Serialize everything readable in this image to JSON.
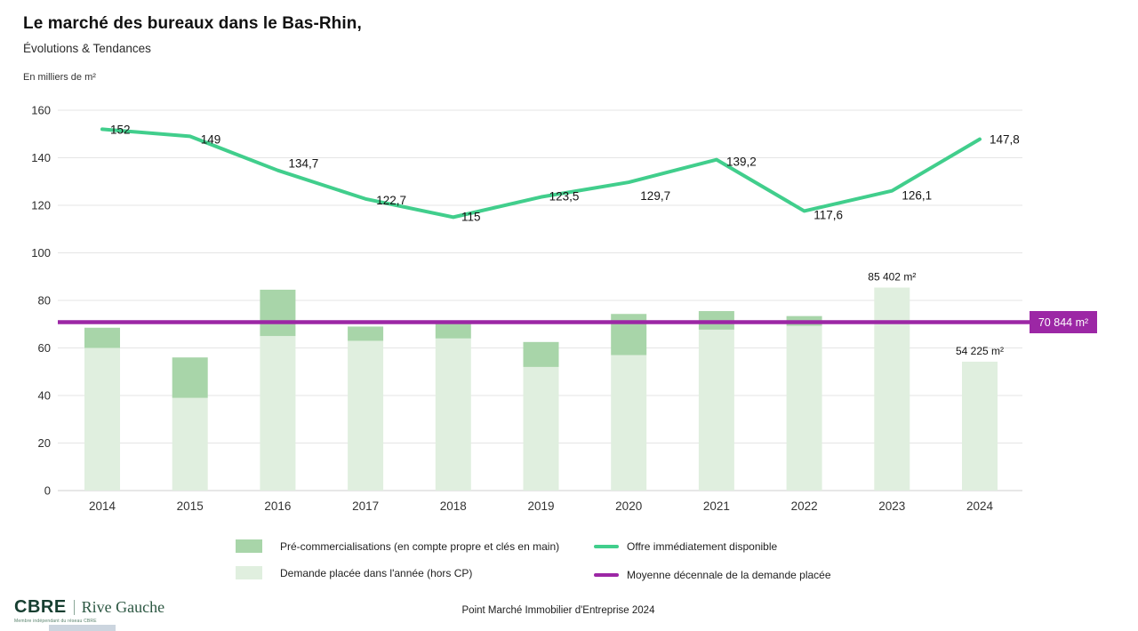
{
  "header": {
    "title": "Le marché des bureaux dans le Bas-Rhin,",
    "subtitle": "Évolutions & Tendances",
    "unit": "En milliers de m²"
  },
  "colors": {
    "bar_light": "#e0efdf",
    "bar_dark": "#a8d5a9",
    "line_green": "#41ce8c",
    "purple": "#9c27a5",
    "grid": "#e5e5e5",
    "axis": "#cfcfcf",
    "text_dark": "#141414"
  },
  "chart_data": {
    "type": "bar+line combo (stacked bars, line, reference line)",
    "categories": [
      "2014",
      "2015",
      "2016",
      "2017",
      "2018",
      "2019",
      "2020",
      "2021",
      "2022",
      "2023",
      "2024"
    ],
    "series": [
      {
        "name": "Demande placée dans l'année (hors CP)",
        "type": "bar",
        "stack": "demande",
        "color": "#e0efdf",
        "values": [
          60,
          39,
          65,
          63,
          64,
          52,
          57,
          67.7,
          69.3,
          85.402,
          54.225
        ]
      },
      {
        "name": "Pré-commercialisations (en compte propre et clés en main)",
        "type": "bar",
        "stack": "demande",
        "color": "#a8d5a9",
        "values": [
          8.5,
          17,
          19.5,
          6,
          7.5,
          10.5,
          17.3,
          7.8,
          4.1,
          0,
          0
        ]
      },
      {
        "name": "Offre immédiatement disponible",
        "type": "line",
        "color": "#41ce8c",
        "values": [
          152,
          149,
          134.7,
          122.7,
          115,
          123.5,
          129.7,
          139.2,
          117.6,
          126.1,
          147.8
        ],
        "labels": [
          "152",
          "149",
          "134,7",
          "122,7",
          "115",
          "123,5",
          "129,7",
          "139,2",
          "117,6",
          "126,1",
          "147,8"
        ]
      },
      {
        "name": "Moyenne décennale de la demande placée",
        "type": "hline",
        "color": "#9c27a5",
        "value": 70.844,
        "label": "70 844 m²"
      }
    ],
    "annotations": [
      {
        "category_index": 9,
        "text": "85 402 m²"
      },
      {
        "category_index": 10,
        "text": "54 225 m²"
      }
    ],
    "ylim": [
      0,
      160
    ],
    "ytick_step": 20,
    "grid": true,
    "legend_position": "bottom"
  },
  "legend": {
    "items": [
      {
        "label": "Pré-commercialisations (en compte propre et clés en main)",
        "swatch": "bar_dark"
      },
      {
        "label": "Demande placée dans l'année (hors CP)",
        "swatch": "bar_light"
      },
      {
        "label": "Offre immédiatement disponible",
        "swatch": "line_green"
      },
      {
        "label": "Moyenne décennale de la demande placée",
        "swatch": "purple"
      }
    ]
  },
  "footer": {
    "logo_primary": "CBRE",
    "logo_secondary": "Rive Gauche",
    "logo_tagline": "Membre indépendant du réseau CBRE",
    "caption": "Point Marché Immobilier d'Entreprise 2024"
  }
}
